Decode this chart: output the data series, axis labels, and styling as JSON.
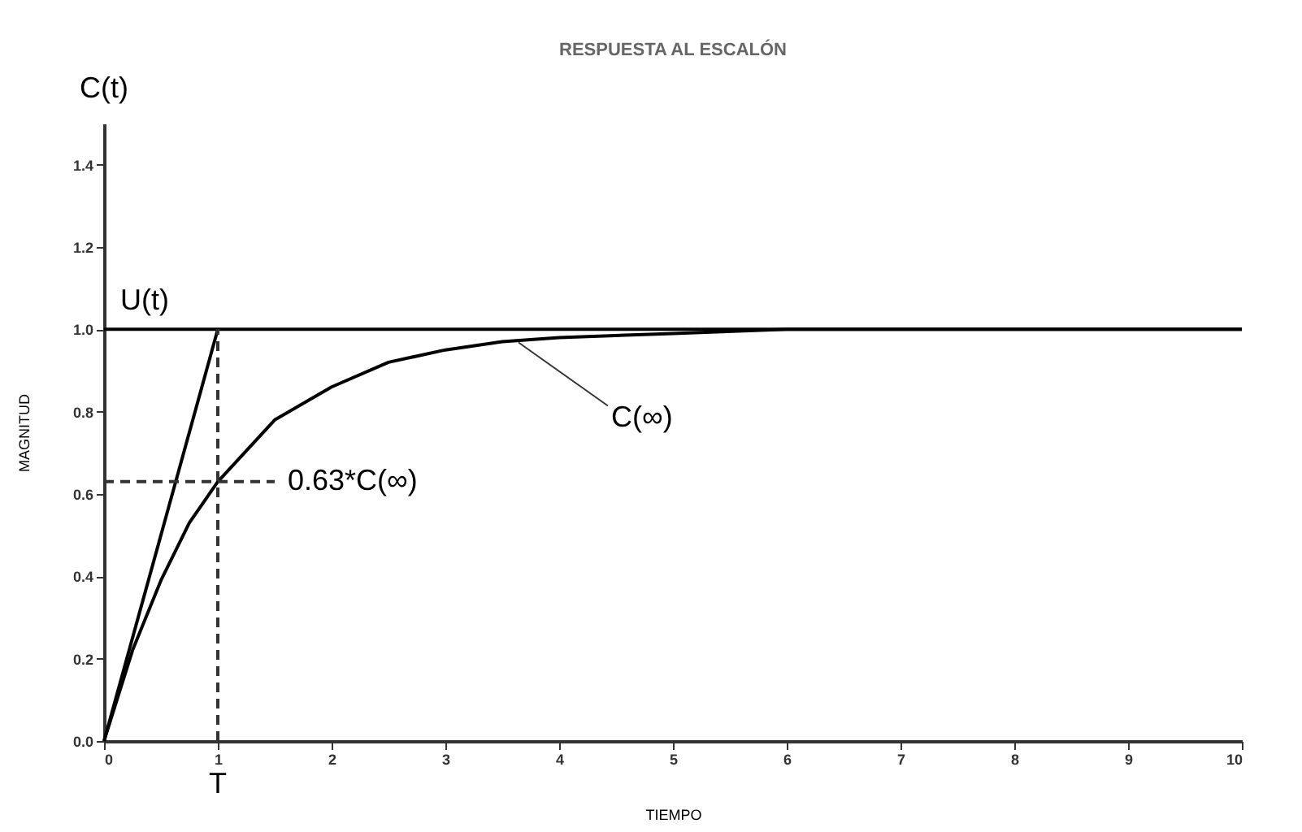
{
  "chart_data": {
    "type": "line",
    "title": "RESPUESTA AL ESCALÓN",
    "xlabel": "TIEMPO",
    "ylabel": "MAGNITUD",
    "xlim": [
      0,
      10
    ],
    "ylim": [
      0,
      1.5
    ],
    "xticks": [
      0,
      1,
      2,
      3,
      4,
      5,
      6,
      7,
      8,
      9,
      10
    ],
    "yticks": [
      {
        "value": 0,
        "label": "0.0"
      },
      {
        "value": 0.2,
        "label": "0.2"
      },
      {
        "value": 0.4,
        "label": "0.4"
      },
      {
        "value": 0.6,
        "label": "0.6"
      },
      {
        "value": 0.8,
        "label": "0.8"
      },
      {
        "value": 1,
        "label": "1.0"
      },
      {
        "value": 1.2,
        "label": "1.2"
      },
      {
        "value": 1.4,
        "label": "1.4"
      }
    ],
    "grid": false,
    "marker": "none",
    "series": [
      {
        "name": "U(t)",
        "color": "#000000",
        "x": [
          0,
          10
        ],
        "values": [
          1,
          1
        ]
      },
      {
        "color": "#000000",
        "x": [
          0,
          1
        ],
        "values": [
          0,
          1
        ]
      },
      {
        "color": "#000000",
        "x": [
          0,
          0.25,
          0.5,
          0.75,
          1,
          1.5,
          2,
          2.5,
          3,
          3.5,
          4,
          5,
          6,
          7,
          8,
          9,
          10
        ],
        "values": [
          0,
          0.22,
          0.39,
          0.53,
          0.63,
          0.78,
          0.86,
          0.92,
          0.95,
          0.97,
          0.98,
          0.99,
          1,
          1,
          1,
          1,
          1
        ]
      },
      {
        "color": "#333333",
        "line_style": "dashed",
        "x": [
          1,
          1
        ],
        "values": [
          0,
          1
        ]
      },
      {
        "color": "#333333",
        "line_style": "dashed",
        "x": [
          0,
          1.5
        ],
        "values": [
          0.63,
          0.63
        ]
      }
    ],
    "annotations": [
      "C(t)",
      {
        "text": "0.63*C(∞)",
        "x": 1.5,
        "y": 0.63
      },
      {
        "text": "C(∞)",
        "x": 3.6,
        "y": 0.98
      },
      {
        "text": "T",
        "x": 1
      }
    ]
  }
}
